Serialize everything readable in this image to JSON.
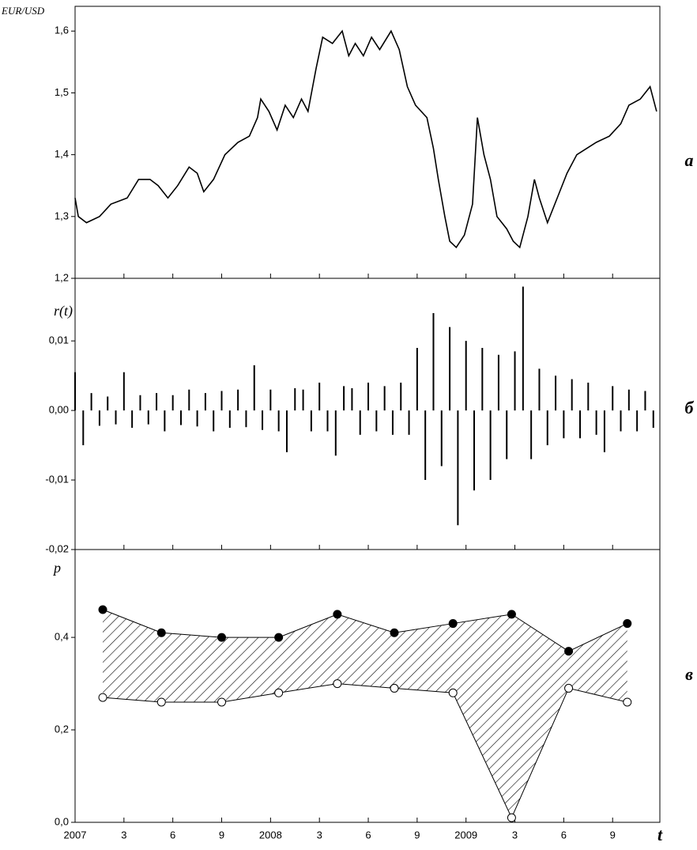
{
  "chart_data": [
    {
      "type": "line",
      "ylabel": "EUR/USD",
      "panel_label": "a",
      "xlim": [
        0,
        35.9
      ],
      "ylim": [
        1.2,
        1.64
      ],
      "yticks": [
        {
          "value": 1.2,
          "label": "1,2"
        },
        {
          "value": 1.3,
          "label": "1,3"
        },
        {
          "value": 1.4,
          "label": "1,4"
        },
        {
          "value": 1.5,
          "label": "1,5"
        },
        {
          "value": 1.6,
          "label": "1,6"
        }
      ],
      "color": "#000000",
      "x": [
        0,
        0.2,
        0.7,
        1.5,
        2.2,
        3.2,
        3.9,
        4.6,
        5.1,
        5.7,
        6.3,
        7.0,
        7.5,
        7.9,
        8.5,
        9.2,
        10.0,
        10.7,
        11.2,
        11.4,
        11.9,
        12.4,
        12.9,
        13.4,
        13.9,
        14.3,
        14.8,
        15.2,
        15.8,
        16.4,
        16.8,
        17.2,
        17.7,
        18.2,
        18.7,
        19.4,
        19.9,
        20.4,
        20.9,
        21.6,
        22.0,
        22.3,
        22.7,
        23.0,
        23.4,
        23.9,
        24.4,
        24.7,
        25.1,
        25.5,
        25.9,
        26.5,
        26.9,
        27.3,
        27.8,
        28.2,
        28.5,
        29.0,
        29.6,
        30.2,
        30.8,
        31.4,
        32.0,
        32.8,
        33.5,
        34.0,
        34.7,
        35.3,
        35.7
      ],
      "values": [
        1.33,
        1.3,
        1.29,
        1.3,
        1.32,
        1.33,
        1.36,
        1.36,
        1.35,
        1.33,
        1.35,
        1.38,
        1.37,
        1.34,
        1.36,
        1.4,
        1.42,
        1.43,
        1.46,
        1.49,
        1.47,
        1.44,
        1.48,
        1.46,
        1.49,
        1.47,
        1.54,
        1.59,
        1.58,
        1.6,
        1.56,
        1.58,
        1.56,
        1.59,
        1.57,
        1.6,
        1.57,
        1.51,
        1.48,
        1.46,
        1.41,
        1.36,
        1.3,
        1.26,
        1.25,
        1.27,
        1.32,
        1.46,
        1.4,
        1.36,
        1.3,
        1.28,
        1.26,
        1.25,
        1.3,
        1.36,
        1.33,
        1.29,
        1.33,
        1.37,
        1.4,
        1.41,
        1.42,
        1.43,
        1.45,
        1.48,
        1.49,
        1.51,
        1.47
      ]
    },
    {
      "type": "stem",
      "ylabel": "r(t)",
      "panel_label": "б",
      "xlim": [
        0,
        35.9
      ],
      "ylim": [
        -0.02,
        0.019
      ],
      "yticks": [
        {
          "value": -0.02,
          "label": "-0,02"
        },
        {
          "value": -0.01,
          "label": "-0,01"
        },
        {
          "value": 0,
          "label": "0,00"
        },
        {
          "value": 0.01,
          "label": "0,01"
        }
      ],
      "color": "#000000",
      "x": [
        0,
        0.5,
        1,
        1.5,
        2,
        2.5,
        3,
        3.5,
        4,
        4.5,
        5,
        5.5,
        6,
        6.5,
        7,
        7.5,
        8,
        8.5,
        9,
        9.5,
        10,
        10.5,
        11,
        11.5,
        12,
        12.5,
        13,
        13.5,
        14,
        14.5,
        15,
        15.5,
        16,
        16.5,
        17,
        17.5,
        18,
        18.5,
        19,
        19.5,
        20,
        20.5,
        21,
        21.5,
        22,
        22.5,
        23,
        23.5,
        24,
        24.5,
        25,
        25.5,
        26,
        26.5,
        27,
        27.5,
        28,
        28.5,
        29,
        29.5,
        30,
        30.5,
        31,
        31.5,
        32,
        32.5,
        33,
        33.5,
        34,
        34.5,
        35,
        35.5
      ],
      "values": [
        0.0055,
        -0.005,
        0.0025,
        -0.0022,
        0.002,
        -0.002,
        0.0055,
        -0.0025,
        0.0022,
        -0.002,
        0.0025,
        -0.003,
        0.0022,
        -0.0021,
        0.003,
        -0.0023,
        0.0025,
        -0.003,
        0.0028,
        -0.0025,
        0.003,
        -0.0024,
        0.0065,
        -0.0028,
        0.003,
        -0.003,
        -0.006,
        0.0032,
        0.003,
        -0.003,
        0.004,
        -0.003,
        -0.0065,
        0.0035,
        0.0032,
        -0.0035,
        0.004,
        -0.003,
        0.0035,
        -0.0035,
        0.004,
        -0.0035,
        0.009,
        -0.01,
        0.014,
        -0.008,
        0.012,
        -0.0165,
        0.01,
        -0.0115,
        0.009,
        -0.01,
        0.008,
        -0.007,
        0.0085,
        0.0178,
        -0.007,
        0.006,
        -0.005,
        0.005,
        -0.004,
        0.0045,
        -0.004,
        0.004,
        -0.0035,
        -0.006,
        0.0035,
        -0.003,
        0.003,
        -0.003,
        0.0028,
        -0.0025
      ]
    },
    {
      "type": "range",
      "ylabel": "p",
      "panel_label": "в",
      "xlabel": "t",
      "xlim": [
        0,
        35.9
      ],
      "ylim": [
        0,
        0.59
      ],
      "yticks": [
        {
          "value": 0,
          "label": "0,0"
        },
        {
          "value": 0.2,
          "label": "0,2"
        },
        {
          "value": 0.4,
          "label": "0,4"
        }
      ],
      "xticks": [
        {
          "value": 0,
          "label": "2007"
        },
        3,
        6,
        9,
        {
          "value": 12,
          "label": "2008"
        },
        {
          "value": 15,
          "label": "3"
        },
        {
          "value": 18,
          "label": "6"
        },
        {
          "value": 21,
          "label": "9"
        },
        {
          "value": 24,
          "label": "2009"
        },
        {
          "value": 27,
          "label": "3"
        },
        {
          "value": 30,
          "label": "6"
        },
        {
          "value": 33,
          "label": "9"
        }
      ],
      "x": [
        1.7,
        5.3,
        9.0,
        12.5,
        16.1,
        19.6,
        23.2,
        26.8,
        30.3,
        33.9
      ],
      "series": [
        {
          "color": "#000000",
          "values": [
            0.46,
            0.41,
            0.4,
            0.4,
            0.45,
            0.41,
            0.43,
            0.45,
            0.37,
            0.43
          ]
        },
        {
          "color": "#ffffff",
          "values": [
            0.27,
            0.26,
            0.26,
            0.28,
            0.3,
            0.29,
            0.28,
            0.01,
            0.29,
            0.26
          ]
        }
      ]
    }
  ]
}
